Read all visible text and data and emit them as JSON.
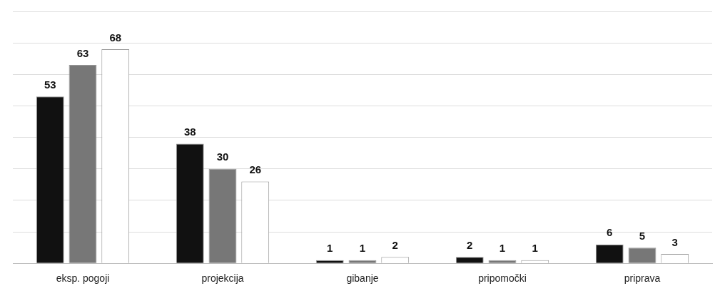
{
  "chart_data": {
    "type": "bar",
    "categories": [
      "eksp. pogoji",
      "projekcija",
      "gibanje",
      "pripomočki",
      "priprava"
    ],
    "series": [
      {
        "color": "#111111",
        "values": [
          53,
          38,
          1,
          2,
          6
        ]
      },
      {
        "color": "#777777",
        "values": [
          63,
          30,
          1,
          1,
          5
        ]
      },
      {
        "color": "#ffffff",
        "values": [
          68,
          26,
          2,
          1,
          3
        ]
      }
    ],
    "ylim": [
      0,
      80
    ],
    "yticks": [
      {
        "value": 0,
        "label": null
      },
      {
        "value": 10,
        "label": null
      },
      {
        "value": 20,
        "label": null
      },
      {
        "value": 30,
        "label": null
      },
      {
        "value": 40,
        "label": null
      },
      {
        "value": 50,
        "label": null
      },
      {
        "value": 60,
        "label": null
      },
      {
        "value": 70,
        "label": null
      },
      {
        "value": 80,
        "label": null
      }
    ],
    "grid": "y",
    "tick_labels": "x",
    "legend": false,
    "data_labels": true
  }
}
